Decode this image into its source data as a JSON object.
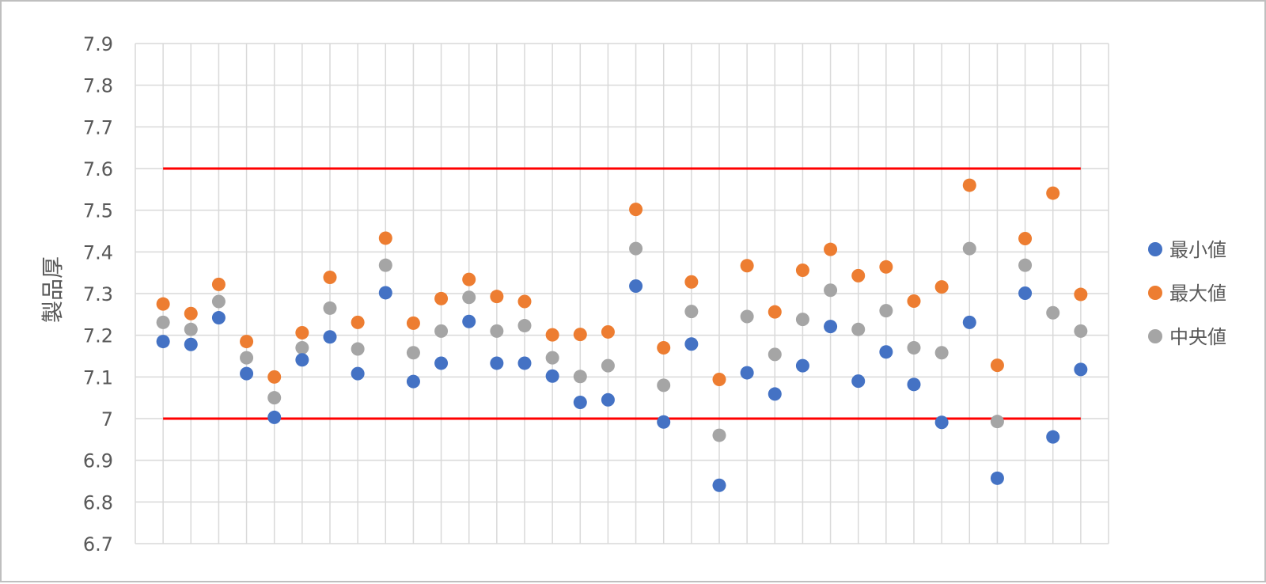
{
  "chart_data": {
    "type": "scatter",
    "title": "",
    "ylabel": "製品厚",
    "xlabel": "",
    "ylim": [
      6.7,
      7.9
    ],
    "yticks": [
      6.7,
      6.8,
      6.9,
      7,
      7.1,
      7.2,
      7.3,
      7.4,
      7.5,
      7.6,
      7.7,
      7.8,
      7.9
    ],
    "ytick_labels": [
      "6.7",
      "6.8",
      "6.9",
      "7",
      "7.1",
      "7.2",
      "7.3",
      "7.4",
      "7.5",
      "7.6",
      "7.7",
      "7.8",
      "7.9"
    ],
    "x": [
      1,
      2,
      3,
      4,
      5,
      6,
      7,
      8,
      9,
      10,
      11,
      12,
      13,
      14,
      15,
      16,
      17,
      18,
      19,
      20,
      21,
      22,
      23,
      24,
      25,
      26,
      27,
      28,
      29,
      30,
      31,
      32,
      33,
      34
    ],
    "xlim": [
      0,
      35
    ],
    "grid": "on",
    "legend_position": "right",
    "limit_lines": [
      {
        "y": 7.6,
        "color": "#ff0000"
      },
      {
        "y": 7.0,
        "color": "#ff0000"
      }
    ],
    "series": [
      {
        "name": "最小値",
        "color": "#4472c4",
        "values": [
          7.185,
          7.178,
          7.242,
          7.108,
          7.003,
          7.141,
          7.196,
          7.108,
          7.302,
          7.089,
          7.133,
          7.233,
          7.133,
          7.133,
          7.102,
          7.039,
          7.045,
          7.318,
          6.992,
          7.179,
          6.84,
          7.11,
          7.059,
          7.127,
          7.221,
          7.09,
          7.16,
          7.082,
          6.991,
          7.231,
          6.857,
          7.301,
          6.956,
          7.118
        ]
      },
      {
        "name": "最大値",
        "color": "#ed7d31",
        "values": [
          7.275,
          7.252,
          7.322,
          7.185,
          7.1,
          7.206,
          7.339,
          7.231,
          7.433,
          7.229,
          7.288,
          7.334,
          7.293,
          7.281,
          7.201,
          7.202,
          7.208,
          7.502,
          7.17,
          7.328,
          7.094,
          7.367,
          7.256,
          7.356,
          7.406,
          7.343,
          7.364,
          7.282,
          7.316,
          7.56,
          7.128,
          7.432,
          7.541,
          7.298
        ]
      },
      {
        "name": "中央値",
        "color": "#a5a5a5",
        "values": [
          7.231,
          7.214,
          7.281,
          7.146,
          7.05,
          7.17,
          7.265,
          7.167,
          7.368,
          7.158,
          7.21,
          7.291,
          7.21,
          7.223,
          7.146,
          7.101,
          7.127,
          7.408,
          7.08,
          7.257,
          6.96,
          7.245,
          7.154,
          7.238,
          7.308,
          7.214,
          7.259,
          7.17,
          7.158,
          7.408,
          6.993,
          7.368,
          7.254,
          7.21
        ]
      }
    ]
  }
}
